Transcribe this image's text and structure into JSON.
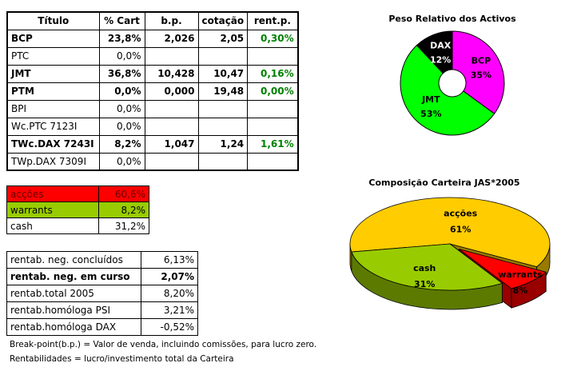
{
  "table": {
    "header": [
      "Título",
      "% Cart",
      "b.p.",
      "cotação",
      "rent.p."
    ],
    "rows": [
      [
        "BCP",
        "23,8%",
        "2,026",
        "2,05",
        "0,30%"
      ],
      [
        "PTC",
        "0,0%"
      ],
      [
        "JMT",
        "36,8%",
        "10,428",
        "10,47",
        "0,16%"
      ],
      [
        "PTM",
        "0,0%",
        "0,000",
        "19,48",
        "0,00%"
      ],
      [
        "BPI",
        "0,0%"
      ],
      [
        "Wc.PTC 7123I",
        "0,0%"
      ],
      [
        "TWc.DAX 7243I",
        "8,2%",
        "1,047",
        "1,24",
        "1,61%"
      ],
      [
        "TWp.DAX 7309I",
        "0,0%"
      ]
    ]
  },
  "allocation": [
    [
      "acções",
      "60,6%"
    ],
    [
      "warrants",
      "8,2%"
    ],
    [
      "cash",
      "31,2%"
    ]
  ],
  "returns": [
    [
      "rentab. neg. concluídos",
      "6,13%"
    ],
    [
      "rentab. neg. em curso",
      "2,07%"
    ],
    [
      "rentab.total 2005",
      "8,20%"
    ],
    [
      "rentab.homóloga PSI",
      "3,21%"
    ],
    [
      "rentab.homóloga DAX",
      "-0,52%"
    ]
  ],
  "notes": [
    "Break-point(b.p.) = Valor de venda, incluindo comissões, para lucro zero.",
    "Rentabilidades = lucro/investimento total da Carteira"
  ],
  "chart_data": [
    {
      "type": "pie",
      "title": "Peso Relativo dos Activos",
      "donut": true,
      "categories": [
        "BCP",
        "JMT",
        "DAX"
      ],
      "values": [
        35,
        53,
        12
      ],
      "value_labels": [
        "35%",
        "53%",
        "12%"
      ],
      "colors": [
        "#ff00ff",
        "#00ff00",
        "#000000"
      ]
    },
    {
      "type": "pie3d",
      "title": "Composição Carteira JAS*2005",
      "exploded": "warrants",
      "categories": [
        "acções",
        "warrants",
        "cash"
      ],
      "values": [
        61,
        8,
        31
      ],
      "value_labels": [
        "61%",
        "8%",
        "31%"
      ],
      "colors": [
        "#ffcc00",
        "#ff0000",
        "#99cc00"
      ]
    }
  ]
}
